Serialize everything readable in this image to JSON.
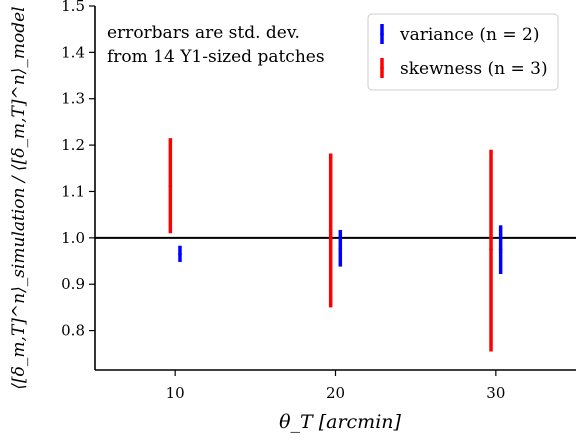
{
  "chart_data": {
    "type": "errorbar",
    "title": "",
    "xlabel": "θ_T [arcmin]",
    "ylabel": "⟨[δ_m,T]^n⟩_simulation / ⟨[δ_m,T]^n⟩_model",
    "xlim": [
      5,
      35
    ],
    "ylim": [
      0.715,
      1.5
    ],
    "x_ticks": [
      10,
      20,
      30
    ],
    "y_ticks": [
      0.8,
      0.9,
      1.0,
      1.1,
      1.2,
      1.3,
      1.4,
      1.5
    ],
    "x_tick_labels": [
      "10",
      "20",
      "30"
    ],
    "y_tick_labels": [
      "0.8",
      "0.9",
      "1.0",
      "1.1",
      "1.2",
      "1.3",
      "1.4",
      "1.5"
    ],
    "reference_line": 1.0,
    "annotation": [
      "errorbars are std. dev.",
      "from 14 Y1-sized patches"
    ],
    "legend_position": "upper right",
    "series": [
      {
        "name": "variance (n = 2)",
        "color": "#0000ff",
        "x": [
          10.3,
          20.3,
          30.3
        ],
        "y": [
          0.965,
          0.977,
          0.975
        ],
        "yerr_low": [
          0.948,
          0.938,
          0.922
        ],
        "yerr_high": [
          0.983,
          1.017,
          1.027
        ]
      },
      {
        "name": "skewness (n = 3)",
        "color": "#ff0000",
        "x": [
          9.7,
          19.7,
          29.7
        ],
        "y": [
          1.112,
          1.016,
          0.975
        ],
        "yerr_low": [
          1.01,
          0.85,
          0.755
        ],
        "yerr_high": [
          1.215,
          1.182,
          1.19
        ]
      }
    ]
  }
}
